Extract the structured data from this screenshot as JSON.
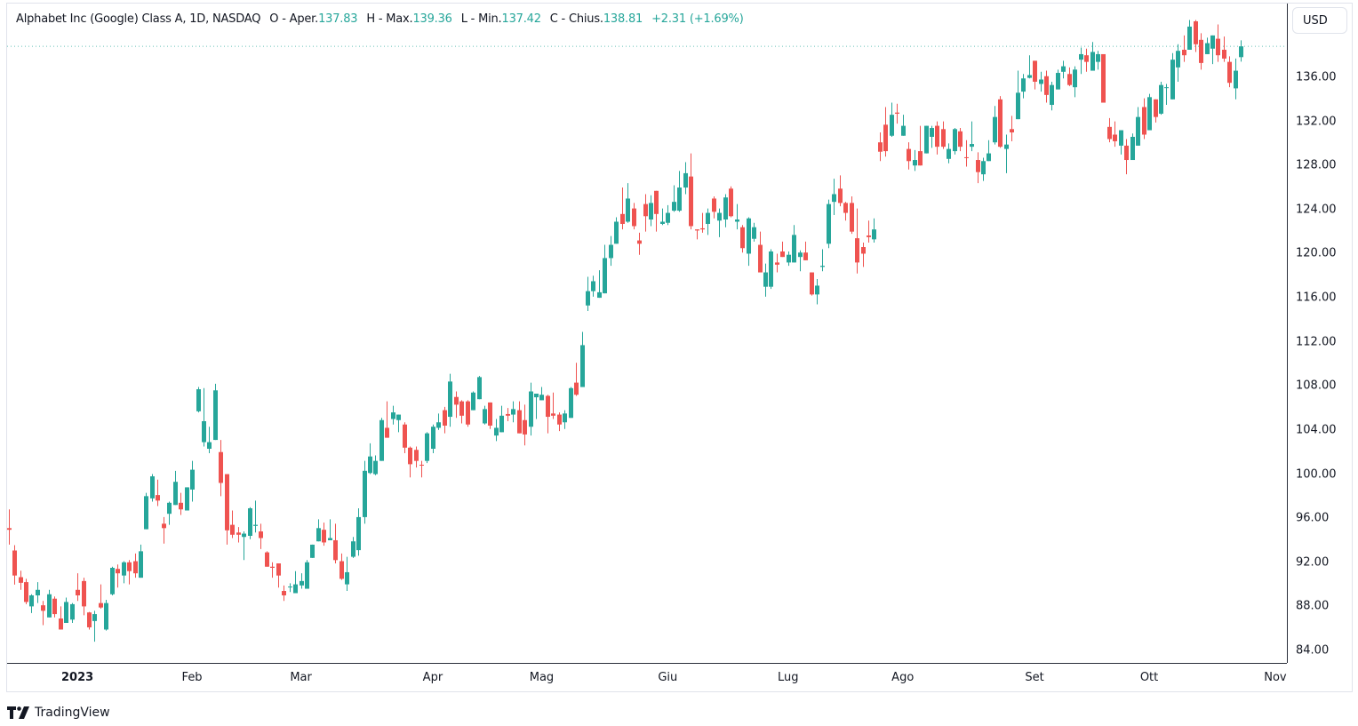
{
  "legend": {
    "symbol": "Alphabet Inc (Google) Class A, 1D, NASDAQ",
    "open_label": "O - Aper.",
    "open": "137.83",
    "high_label": "H - Max.",
    "high": "139.36",
    "low_label": "L - Min.",
    "low": "137.42",
    "close_label": "C - Chius.",
    "close": "138.81",
    "change": "+2.31 (+1.69%)"
  },
  "currency_button": "USD",
  "branding": "TradingView",
  "colors": {
    "up": "#26a69a",
    "down": "#ef5350",
    "last_price_line": "#26a69a"
  },
  "chart_data": {
    "type": "candlestick",
    "title": "Alphabet Inc (Google) Class A, 1D, NASDAQ",
    "ylim": [
      82.5,
      142.2
    ],
    "grid": false,
    "yticks": [
      "84.00",
      "88.00",
      "92.00",
      "96.00",
      "100.00",
      "104.00",
      "108.00",
      "112.00",
      "116.00",
      "120.00",
      "124.00",
      "128.00",
      "132.00",
      "136.00"
    ],
    "xticks": [
      {
        "label": "2023",
        "index": 12,
        "bold": true
      },
      {
        "label": "Feb",
        "index": 32
      },
      {
        "label": "Mar",
        "index": 51
      },
      {
        "label": "Apr",
        "index": 74
      },
      {
        "label": "Mag",
        "index": 93
      },
      {
        "label": "Giu",
        "index": 115
      },
      {
        "label": "Lug",
        "index": 136
      },
      {
        "label": "Ago",
        "index": 156
      },
      {
        "label": "Set",
        "index": 179
      },
      {
        "label": "Ott",
        "index": 199
      },
      {
        "label": "Nov",
        "index": 221
      }
    ],
    "last_price": 138.81,
    "ohlc_fields": [
      "open",
      "high",
      "low",
      "close"
    ],
    "candles": [
      [
        95.1,
        96.8,
        93.6,
        94.95
      ],
      [
        93.07,
        93.55,
        89.98,
        90.8
      ],
      [
        90.65,
        91.24,
        89.5,
        90.14
      ],
      [
        90.2,
        90.5,
        88.2,
        88.4
      ],
      [
        88.0,
        89.1,
        87.4,
        89.0
      ],
      [
        89.0,
        90.2,
        88.3,
        89.5
      ],
      [
        88.1,
        88.5,
        86.3,
        87.6
      ],
      [
        87.0,
        89.5,
        87.0,
        89.1
      ],
      [
        88.7,
        88.9,
        87.0,
        87.3
      ],
      [
        86.9,
        88.0,
        85.9,
        85.9
      ],
      [
        86.5,
        88.8,
        86.5,
        88.4
      ],
      [
        86.8,
        88.3,
        86.5,
        88.2
      ],
      [
        89.5,
        91.0,
        88.5,
        89.0
      ],
      [
        90.3,
        90.6,
        87.2,
        88.0
      ],
      [
        87.45,
        87.5,
        85.9,
        86.1
      ],
      [
        86.67,
        87.6,
        84.8,
        87.3
      ],
      [
        88.3,
        90.0,
        87.8,
        87.9
      ],
      [
        85.9,
        88.6,
        85.8,
        88.3
      ],
      [
        89.1,
        91.6,
        89.0,
        91.5
      ],
      [
        91.4,
        91.8,
        89.7,
        91.0
      ],
      [
        90.8,
        92.1,
        90.1,
        92.0
      ],
      [
        92.0,
        92.2,
        90.0,
        91.2
      ],
      [
        92.1,
        92.8,
        90.6,
        91.0
      ],
      [
        90.6,
        93.6,
        90.6,
        93.0
      ],
      [
        95.0,
        98.3,
        95.0,
        98.0
      ],
      [
        97.8,
        100.0,
        97.5,
        99.8
      ],
      [
        98.1,
        99.5,
        97.1,
        97.6
      ],
      [
        95.5,
        96.1,
        93.7,
        95.1
      ],
      [
        96.4,
        97.5,
        95.4,
        97.4
      ],
      [
        97.2,
        100.3,
        97.2,
        99.3
      ],
      [
        97.4,
        98.3,
        96.3,
        96.8
      ],
      [
        96.7,
        98.8,
        96.7,
        98.8
      ],
      [
        98.6,
        101.2,
        97.5,
        100.4
      ],
      [
        105.7,
        107.9,
        105.6,
        107.7
      ],
      [
        102.9,
        107.8,
        102.5,
        104.8
      ],
      [
        102.3,
        104.3,
        101.9,
        102.9
      ],
      [
        103.1,
        108.2,
        103.1,
        107.6
      ],
      [
        102.0,
        103.1,
        98.0,
        99.2
      ],
      [
        100.0,
        100.0,
        93.6,
        94.9
      ],
      [
        95.4,
        96.7,
        94.2,
        94.5
      ],
      [
        94.7,
        95.2,
        93.8,
        94.5
      ],
      [
        94.3,
        94.8,
        92.2,
        94.6
      ],
      [
        94.4,
        97.0,
        94.1,
        96.9
      ],
      [
        95.3,
        97.6,
        94.7,
        95.4
      ],
      [
        94.8,
        95.5,
        93.2,
        94.2
      ],
      [
        92.9,
        93.0,
        91.6,
        91.6
      ],
      [
        91.6,
        92.0,
        90.6,
        91.5
      ],
      [
        91.9,
        91.9,
        89.7,
        90.8
      ],
      [
        89.4,
        89.9,
        88.5,
        89.0
      ],
      [
        89.75,
        90.1,
        89.3,
        89.8
      ],
      [
        89.2,
        91.2,
        89.2,
        90.0
      ],
      [
        89.9,
        91.0,
        89.6,
        90.3
      ],
      [
        89.6,
        92.2,
        89.6,
        92.0
      ],
      [
        92.4,
        93.6,
        92.4,
        93.6
      ],
      [
        93.9,
        95.9,
        93.9,
        95.1
      ],
      [
        94.95,
        95.6,
        93.5,
        93.8
      ],
      [
        94.0,
        95.9,
        94.0,
        94.2
      ],
      [
        94.0,
        95.5,
        91.9,
        92.2
      ],
      [
        92.1,
        92.8,
        90.4,
        90.5
      ],
      [
        90.0,
        92.5,
        89.4,
        91.1
      ],
      [
        92.5,
        94.3,
        92.4,
        93.9
      ],
      [
        93.1,
        96.9,
        92.6,
        96.1
      ],
      [
        96.1,
        101.2,
        95.5,
        100.3
      ],
      [
        100.1,
        102.8,
        100.0,
        101.6
      ],
      [
        100.0,
        101.7,
        99.9,
        101.2
      ],
      [
        101.2,
        105.1,
        101.2,
        104.9
      ],
      [
        104.2,
        106.6,
        103.3,
        103.3
      ],
      [
        105.0,
        106.2,
        104.5,
        105.6
      ],
      [
        104.9,
        105.4,
        103.8,
        105.4
      ],
      [
        104.5,
        104.7,
        101.9,
        102.4
      ],
      [
        102.4,
        102.5,
        99.7,
        100.9
      ],
      [
        102.2,
        102.5,
        100.6,
        101.2
      ],
      [
        100.85,
        101.2,
        99.7,
        100.8
      ],
      [
        101.2,
        103.8,
        101.0,
        103.7
      ],
      [
        102.3,
        104.5,
        101.9,
        104.3
      ],
      [
        104.2,
        105.5,
        104.0,
        104.7
      ],
      [
        105.8,
        106.1,
        103.7,
        104.4
      ],
      [
        105.2,
        109.1,
        104.3,
        108.4
      ],
      [
        107.0,
        107.5,
        105.1,
        106.3
      ],
      [
        106.6,
        106.7,
        104.6,
        105.3
      ],
      [
        106.6,
        106.7,
        104.3,
        104.5
      ],
      [
        105.8,
        107.5,
        105.8,
        107.4
      ],
      [
        106.8,
        108.9,
        106.8,
        108.8
      ],
      [
        104.6,
        106.2,
        104.5,
        105.9
      ],
      [
        106.5,
        106.5,
        104.1,
        104.4
      ],
      [
        103.5,
        105.0,
        103.0,
        104.2
      ],
      [
        103.8,
        106.2,
        103.8,
        105.3
      ],
      [
        105.45,
        106.0,
        104.8,
        105.3
      ],
      [
        105.4,
        106.6,
        104.7,
        105.9
      ],
      [
        105.8,
        106.6,
        103.7,
        103.7
      ],
      [
        104.9,
        106.3,
        102.6,
        103.6
      ],
      [
        104.3,
        108.3,
        103.5,
        107.5
      ],
      [
        106.97,
        107.3,
        105.0,
        107.3
      ],
      [
        106.7,
        107.9,
        106.7,
        107.2
      ],
      [
        107.1,
        107.2,
        103.7,
        105.2
      ],
      [
        105.5,
        107.4,
        105.0,
        105.3
      ],
      [
        105.4,
        105.6,
        103.9,
        104.5
      ],
      [
        104.7,
        105.8,
        104.1,
        105.5
      ],
      [
        105.1,
        107.9,
        105.1,
        107.8
      ],
      [
        108.3,
        110.1,
        107.1,
        107.2
      ],
      [
        107.9,
        112.9,
        107.9,
        111.7
      ],
      [
        115.3,
        117.9,
        114.8,
        116.6
      ],
      [
        116.6,
        118.0,
        116.1,
        117.5
      ],
      [
        116.0,
        118.5,
        116.0,
        116.5
      ],
      [
        116.4,
        120.8,
        116.4,
        119.6
      ],
      [
        119.6,
        121.6,
        118.9,
        120.8
      ],
      [
        120.9,
        123.3,
        120.9,
        122.9
      ],
      [
        123.6,
        126.0,
        122.2,
        122.7
      ],
      [
        122.9,
        126.4,
        122.8,
        125.0
      ],
      [
        124.1,
        124.6,
        122.2,
        122.5
      ],
      [
        121.2,
        121.9,
        119.9,
        120.9
      ],
      [
        124.5,
        125.4,
        122.0,
        123.4
      ],
      [
        123.1,
        125.3,
        122.5,
        124.6
      ],
      [
        125.7,
        125.7,
        122.0,
        123.6
      ],
      [
        122.7,
        124.1,
        122.6,
        122.9
      ],
      [
        122.8,
        124.4,
        122.6,
        123.7
      ],
      [
        123.9,
        126.2,
        123.8,
        124.7
      ],
      [
        123.9,
        127.5,
        123.8,
        126.0
      ],
      [
        126.0,
        128.3,
        125.4,
        127.3
      ],
      [
        127.0,
        129.1,
        122.2,
        122.5
      ],
      [
        122.2,
        122.2,
        121.3,
        122.1
      ],
      [
        122.3,
        123.7,
        121.9,
        122.2
      ],
      [
        122.7,
        124.1,
        121.7,
        123.7
      ],
      [
        125.0,
        125.2,
        123.2,
        123.8
      ],
      [
        123.0,
        124.1,
        121.5,
        123.7
      ],
      [
        123.1,
        125.4,
        122.4,
        125.1
      ],
      [
        125.9,
        126.1,
        123.3,
        123.4
      ],
      [
        122.9,
        124.5,
        122.2,
        123.1
      ],
      [
        122.4,
        122.6,
        120.1,
        120.5
      ],
      [
        120.0,
        123.3,
        118.9,
        123.2
      ],
      [
        121.35,
        122.8,
        121.1,
        122.4
      ],
      [
        120.8,
        122.0,
        118.3,
        118.3
      ],
      [
        117.0,
        119.1,
        116.1,
        118.3
      ],
      [
        117.0,
        120.4,
        116.8,
        120.2
      ],
      [
        119.2,
        120.0,
        118.3,
        119.0
      ],
      [
        120.2,
        121.1,
        119.7,
        119.7
      ],
      [
        119.2,
        120.2,
        118.9,
        119.9
      ],
      [
        119.2,
        122.6,
        119.2,
        121.7
      ],
      [
        119.7,
        120.3,
        118.4,
        120.1
      ],
      [
        120.1,
        121.1,
        119.4,
        119.4
      ],
      [
        118.3,
        118.3,
        116.2,
        116.3
      ],
      [
        116.3,
        117.7,
        115.4,
        117.1
      ],
      [
        118.8,
        120.4,
        118.4,
        118.9
      ],
      [
        120.9,
        124.9,
        120.5,
        124.5
      ],
      [
        124.7,
        126.8,
        123.5,
        125.4
      ],
      [
        125.9,
        127.1,
        124.3,
        124.6
      ],
      [
        124.6,
        124.7,
        123.0,
        123.7
      ],
      [
        124.6,
        125.2,
        121.8,
        122.0
      ],
      [
        121.4,
        124.1,
        118.2,
        119.2
      ],
      [
        120.6,
        121.0,
        118.8,
        120.0
      ],
      [
        121.65,
        123.0,
        121.0,
        121.5
      ],
      [
        121.3,
        123.2,
        121.0,
        122.2
      ],
      [
        130.1,
        131.0,
        128.4,
        129.25
      ],
      [
        131.7,
        133.3,
        128.8,
        129.3
      ],
      [
        130.7,
        133.7,
        130.6,
        132.6
      ],
      [
        132.8,
        133.6,
        131.8,
        132.7
      ],
      [
        130.7,
        132.6,
        130.7,
        131.6
      ],
      [
        129.5,
        130.1,
        127.64,
        128.4
      ],
      [
        128.0,
        129.4,
        127.5,
        128.5
      ],
      [
        129.3,
        131.6,
        128.0,
        128.0
      ],
      [
        129.1,
        131.6,
        129.1,
        131.6
      ],
      [
        130.6,
        131.6,
        129.6,
        131.4
      ],
      [
        131.6,
        132.0,
        129.0,
        129.7
      ],
      [
        131.3,
        132.0,
        129.5,
        129.7
      ],
      [
        128.6,
        130.0,
        128.2,
        129.5
      ],
      [
        129.3,
        131.4,
        129.0,
        131.3
      ],
      [
        131.1,
        131.4,
        129.3,
        129.7
      ],
      [
        128.75,
        130.3,
        127.9,
        128.7
      ],
      [
        129.7,
        132.0,
        129.3,
        129.95
      ],
      [
        128.5,
        129.2,
        126.4,
        127.4
      ],
      [
        127.2,
        128.7,
        126.6,
        128.4
      ],
      [
        128.4,
        130.3,
        128.4,
        129.1
      ],
      [
        130.1,
        133.4,
        129.9,
        132.4
      ],
      [
        134.0,
        134.3,
        129.6,
        129.7
      ],
      [
        129.5,
        130.8,
        127.3,
        129.9
      ],
      [
        131.3,
        132.5,
        130.2,
        131.0
      ],
      [
        132.2,
        136.6,
        132.2,
        134.6
      ],
      [
        134.7,
        136.3,
        134.1,
        135.9
      ],
      [
        135.95,
        138.0,
        135.9,
        136.2
      ],
      [
        137.5,
        137.5,
        134.9,
        135.6
      ],
      [
        135.4,
        136.5,
        134.7,
        135.8
      ],
      [
        136.1,
        136.6,
        133.7,
        134.4
      ],
      [
        133.5,
        135.6,
        133.0,
        135.3
      ],
      [
        134.9,
        136.7,
        134.9,
        136.4
      ],
      [
        136.5,
        137.5,
        135.9,
        137.0
      ],
      [
        136.3,
        136.9,
        135.2,
        135.3
      ],
      [
        135.1,
        137.0,
        134.2,
        136.7
      ],
      [
        137.6,
        138.7,
        136.3,
        138.1
      ],
      [
        138.0,
        138.6,
        136.5,
        137.4
      ],
      [
        136.6,
        139.2,
        136.6,
        138.3
      ],
      [
        137.4,
        138.4,
        136.7,
        138.1
      ],
      [
        138.1,
        138.1,
        133.7,
        133.7
      ],
      [
        131.5,
        132.3,
        130.1,
        130.4
      ],
      [
        130.8,
        132.0,
        129.7,
        130.2
      ],
      [
        129.8,
        131.2,
        129.0,
        131.2
      ],
      [
        129.8,
        130.4,
        127.2,
        128.5
      ],
      [
        128.5,
        130.9,
        128.5,
        130.6
      ],
      [
        129.8,
        133.3,
        129.8,
        132.4
      ],
      [
        133.3,
        134.1,
        130.4,
        130.8
      ],
      [
        131.2,
        134.5,
        131.2,
        134.2
      ],
      [
        134.0,
        134.0,
        131.9,
        132.4
      ],
      [
        132.7,
        135.6,
        132.6,
        135.3
      ],
      [
        135.05,
        135.4,
        133.5,
        135.1
      ],
      [
        134.0,
        138.2,
        134.0,
        137.6
      ],
      [
        136.9,
        139.0,
        135.6,
        138.4
      ],
      [
        138.5,
        139.8,
        137.4,
        138.0
      ],
      [
        138.5,
        141.2,
        138.5,
        140.6
      ],
      [
        141.08,
        141.2,
        138.3,
        139.0
      ],
      [
        139.4,
        140.0,
        136.7,
        137.3
      ],
      [
        138.1,
        139.6,
        138.1,
        139.1
      ],
      [
        138.6,
        139.8,
        137.2,
        139.8
      ],
      [
        139.5,
        140.8,
        137.4,
        138.0
      ],
      [
        138.5,
        139.7,
        137.4,
        137.7
      ],
      [
        137.4,
        137.9,
        135.1,
        135.5
      ],
      [
        135.0,
        137.7,
        134.0,
        136.6
      ],
      [
        137.83,
        139.36,
        137.42,
        138.81
      ]
    ]
  }
}
